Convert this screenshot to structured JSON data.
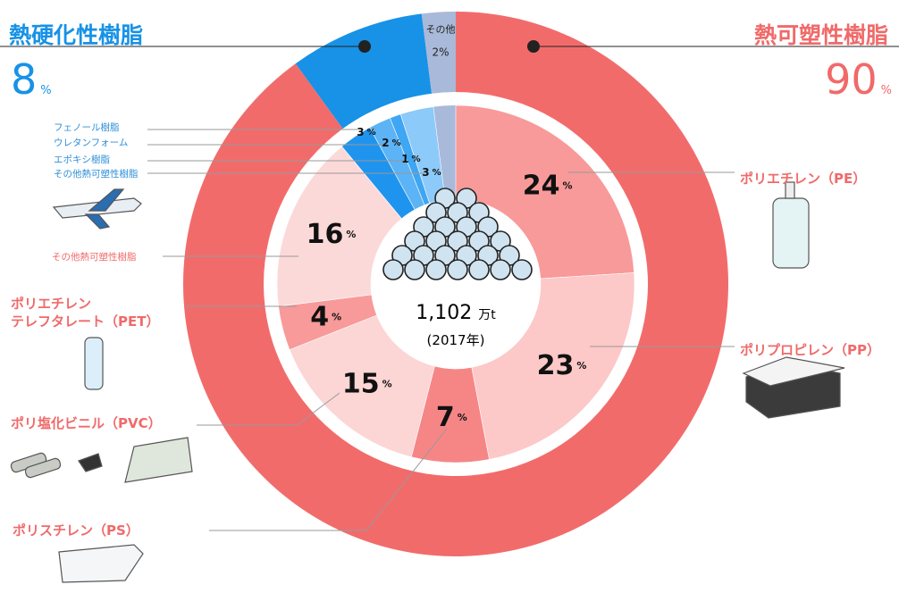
{
  "chart_data": {
    "type": "donut",
    "unit": "%",
    "total": {
      "value": 1102,
      "label": "1,102"
    },
    "total_unit": "万t",
    "total_note": "(2017年)",
    "outer": {
      "categories": [
        "熱可塑性樹脂",
        "熱硬化性樹脂",
        "その他"
      ],
      "values": [
        90,
        8,
        2
      ],
      "colors": [
        "#f26b6b",
        "#1792e6",
        "#a9b9da"
      ]
    },
    "inner": {
      "categories": [
        "ポリエチレン（PE）",
        "ポリプロピレン（PP）",
        "ポリスチレン（PS）",
        "ポリ塩化ビニル（PVC）",
        "ポリエチレン\nテレフタレート（PET）",
        "その他熱可塑性樹脂",
        "フェノール樹脂",
        "ウレタンフォーム",
        "エポキシ樹脂",
        "その他熱可塑性樹脂"
      ],
      "values": [
        24,
        23,
        7,
        15,
        4,
        16,
        3,
        2,
        1,
        3
      ],
      "colors": [
        "#f89a9a",
        "#fcc8c8",
        "#f68686",
        "#fcd5d5",
        "#f89a9a",
        "#fcd9d9",
        "#1f94ee",
        "#5cb3f5",
        "#3ea6f3",
        "#8ccaf9"
      ]
    }
  }
}
